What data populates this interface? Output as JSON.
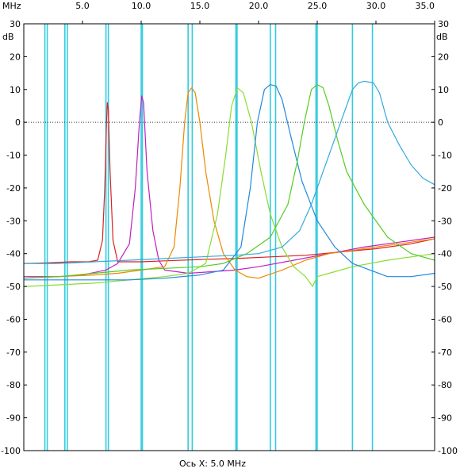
{
  "chart_data": {
    "type": "line",
    "x_unit": "MHz",
    "y_unit": "dB",
    "x_axis_caption": "Ось X: 5.0 MHz",
    "xlim": [
      0.0,
      35.0
    ],
    "ylim": [
      -100,
      30
    ],
    "x_ticks": [
      {
        "value": 5.0,
        "label": "5.0"
      },
      {
        "value": 10.0,
        "label": "10.0"
      },
      {
        "value": 15.0,
        "label": "15.0"
      },
      {
        "value": 20.0,
        "label": "20.0"
      },
      {
        "value": 25.0,
        "label": "25.0"
      },
      {
        "value": 30.0,
        "label": "30.0"
      },
      {
        "value": 35.0,
        "label": "35.0"
      }
    ],
    "y_ticks": [
      30,
      20,
      10,
      0,
      -10,
      -20,
      -30,
      -40,
      -50,
      -60,
      -70,
      -80,
      -90,
      -100
    ],
    "y_tick_labels": [
      "30",
      "20",
      "10",
      "0",
      "-10",
      "-20",
      "-30",
      "-40",
      "-50",
      "-60",
      "-70",
      "-80",
      "-90",
      "-100"
    ],
    "zero_line_dotted": true,
    "grid": false,
    "colors": {
      "marker": "#33ccdd",
      "zero_line": "#333333",
      "frame": "#000000"
    },
    "marker_pairs": [
      [
        1.8,
        2.0
      ],
      [
        3.5,
        3.7
      ],
      [
        7.0,
        7.2
      ],
      [
        10.0,
        10.1
      ],
      [
        14.0,
        14.35
      ],
      [
        18.07,
        18.17
      ],
      [
        21.0,
        21.45
      ],
      [
        24.89,
        24.99
      ],
      [
        28.0,
        29.7
      ]
    ],
    "series": [
      {
        "color": "#dd2020",
        "points": [
          [
            0,
            -43
          ],
          [
            2,
            -42.8
          ],
          [
            4,
            -42.5
          ],
          [
            5.5,
            -42.5
          ],
          [
            6.3,
            -42
          ],
          [
            6.7,
            -36
          ],
          [
            6.9,
            -20
          ],
          [
            7.05,
            0
          ],
          [
            7.12,
            6
          ],
          [
            7.2,
            4
          ],
          [
            7.35,
            -15
          ],
          [
            7.6,
            -36
          ],
          [
            8,
            -42.5
          ],
          [
            10,
            -42.5
          ],
          [
            12,
            -42.2
          ],
          [
            15,
            -41.8
          ],
          [
            18,
            -41.5
          ],
          [
            21,
            -41
          ],
          [
            24,
            -40.5
          ],
          [
            27,
            -39.5
          ],
          [
            30,
            -38.5
          ],
          [
            33,
            -37
          ],
          [
            35,
            -35.5
          ]
        ]
      },
      {
        "color": "#c020c0",
        "points": [
          [
            0,
            -47
          ],
          [
            3,
            -47
          ],
          [
            5,
            -46.5
          ],
          [
            7,
            -45
          ],
          [
            8,
            -43
          ],
          [
            9,
            -37
          ],
          [
            9.5,
            -20
          ],
          [
            9.85,
            0
          ],
          [
            10.05,
            8
          ],
          [
            10.2,
            6
          ],
          [
            10.5,
            -15
          ],
          [
            11,
            -33
          ],
          [
            11.5,
            -42
          ],
          [
            12,
            -45
          ],
          [
            14,
            -46
          ],
          [
            16,
            -45.5
          ],
          [
            18,
            -45
          ],
          [
            20,
            -44
          ],
          [
            23,
            -42
          ],
          [
            26,
            -40
          ],
          [
            29,
            -38
          ],
          [
            32,
            -36.5
          ],
          [
            35,
            -35
          ]
        ]
      },
      {
        "color": "#ee8800",
        "points": [
          [
            0,
            -47.5
          ],
          [
            3,
            -47
          ],
          [
            6,
            -46.5
          ],
          [
            8,
            -46
          ],
          [
            10,
            -45
          ],
          [
            12,
            -44
          ],
          [
            12.8,
            -38
          ],
          [
            13.3,
            -20
          ],
          [
            13.7,
            0
          ],
          [
            14,
            9
          ],
          [
            14.3,
            10.5
          ],
          [
            14.6,
            9
          ],
          [
            15,
            0
          ],
          [
            15.5,
            -15
          ],
          [
            16.2,
            -30
          ],
          [
            17,
            -40
          ],
          [
            18,
            -45
          ],
          [
            19,
            -47
          ],
          [
            20,
            -47.5
          ],
          [
            22,
            -45
          ],
          [
            24,
            -42
          ],
          [
            26,
            -40
          ],
          [
            28,
            -39
          ],
          [
            30,
            -38
          ],
          [
            32,
            -37
          ],
          [
            35,
            -35.5
          ]
        ]
      },
      {
        "color": "#88dd33",
        "points": [
          [
            0,
            -50
          ],
          [
            3,
            -49.5
          ],
          [
            6,
            -49
          ],
          [
            9,
            -48
          ],
          [
            12,
            -47
          ],
          [
            14,
            -46
          ],
          [
            15.5,
            -43
          ],
          [
            16.5,
            -28
          ],
          [
            17.2,
            -10
          ],
          [
            17.7,
            5
          ],
          [
            18.2,
            10.5
          ],
          [
            18.7,
            9
          ],
          [
            19.4,
            0
          ],
          [
            20.2,
            -15
          ],
          [
            21,
            -28
          ],
          [
            22,
            -38
          ],
          [
            23,
            -44
          ],
          [
            24,
            -47
          ],
          [
            24.6,
            -50
          ],
          [
            25,
            -47
          ],
          [
            26,
            -46
          ],
          [
            28,
            -44
          ],
          [
            31,
            -42
          ],
          [
            33,
            -41
          ],
          [
            35,
            -40
          ]
        ]
      },
      {
        "color": "#2288dd",
        "points": [
          [
            0,
            -48
          ],
          [
            3,
            -48
          ],
          [
            6,
            -48
          ],
          [
            9,
            -48
          ],
          [
            12,
            -47.5
          ],
          [
            15,
            -46.5
          ],
          [
            17,
            -45
          ],
          [
            18.5,
            -38
          ],
          [
            19.3,
            -20
          ],
          [
            19.9,
            0
          ],
          [
            20.5,
            10
          ],
          [
            21,
            11.5
          ],
          [
            21.5,
            11
          ],
          [
            22,
            7
          ],
          [
            22.8,
            -5
          ],
          [
            23.7,
            -18
          ],
          [
            25,
            -30
          ],
          [
            26.5,
            -38
          ],
          [
            28,
            -43
          ],
          [
            29.5,
            -45
          ],
          [
            31,
            -47
          ],
          [
            33,
            -47
          ],
          [
            35,
            -46
          ]
        ]
      },
      {
        "color": "#55cc22",
        "points": [
          [
            0,
            -47.5
          ],
          [
            3,
            -47
          ],
          [
            6,
            -46
          ],
          [
            9,
            -45
          ],
          [
            12,
            -44.5
          ],
          [
            15,
            -44
          ],
          [
            17,
            -43
          ],
          [
            19,
            -40
          ],
          [
            21,
            -35
          ],
          [
            22.5,
            -25
          ],
          [
            23.3,
            -12
          ],
          [
            23.9,
            0
          ],
          [
            24.5,
            10
          ],
          [
            25,
            11.5
          ],
          [
            25.5,
            10.5
          ],
          [
            26,
            5
          ],
          [
            26.7,
            -5
          ],
          [
            27.5,
            -15
          ],
          [
            29,
            -25
          ],
          [
            31,
            -35
          ],
          [
            33,
            -40
          ],
          [
            35,
            -42
          ]
        ]
      },
      {
        "color": "#33aadd",
        "points": [
          [
            0,
            -43
          ],
          [
            3,
            -43
          ],
          [
            6,
            -42.5
          ],
          [
            9,
            -42
          ],
          [
            12,
            -41.5
          ],
          [
            15,
            -41
          ],
          [
            18,
            -40.5
          ],
          [
            20,
            -40
          ],
          [
            22,
            -38
          ],
          [
            23.5,
            -33
          ],
          [
            24.5,
            -25
          ],
          [
            25.5,
            -15
          ],
          [
            26.5,
            -5
          ],
          [
            27.3,
            3
          ],
          [
            28,
            10
          ],
          [
            28.5,
            12
          ],
          [
            29,
            12.5
          ],
          [
            29.8,
            12
          ],
          [
            30.3,
            9
          ],
          [
            31,
            0
          ],
          [
            32,
            -7
          ],
          [
            33,
            -13
          ],
          [
            34,
            -17
          ],
          [
            35,
            -19
          ]
        ]
      }
    ]
  }
}
